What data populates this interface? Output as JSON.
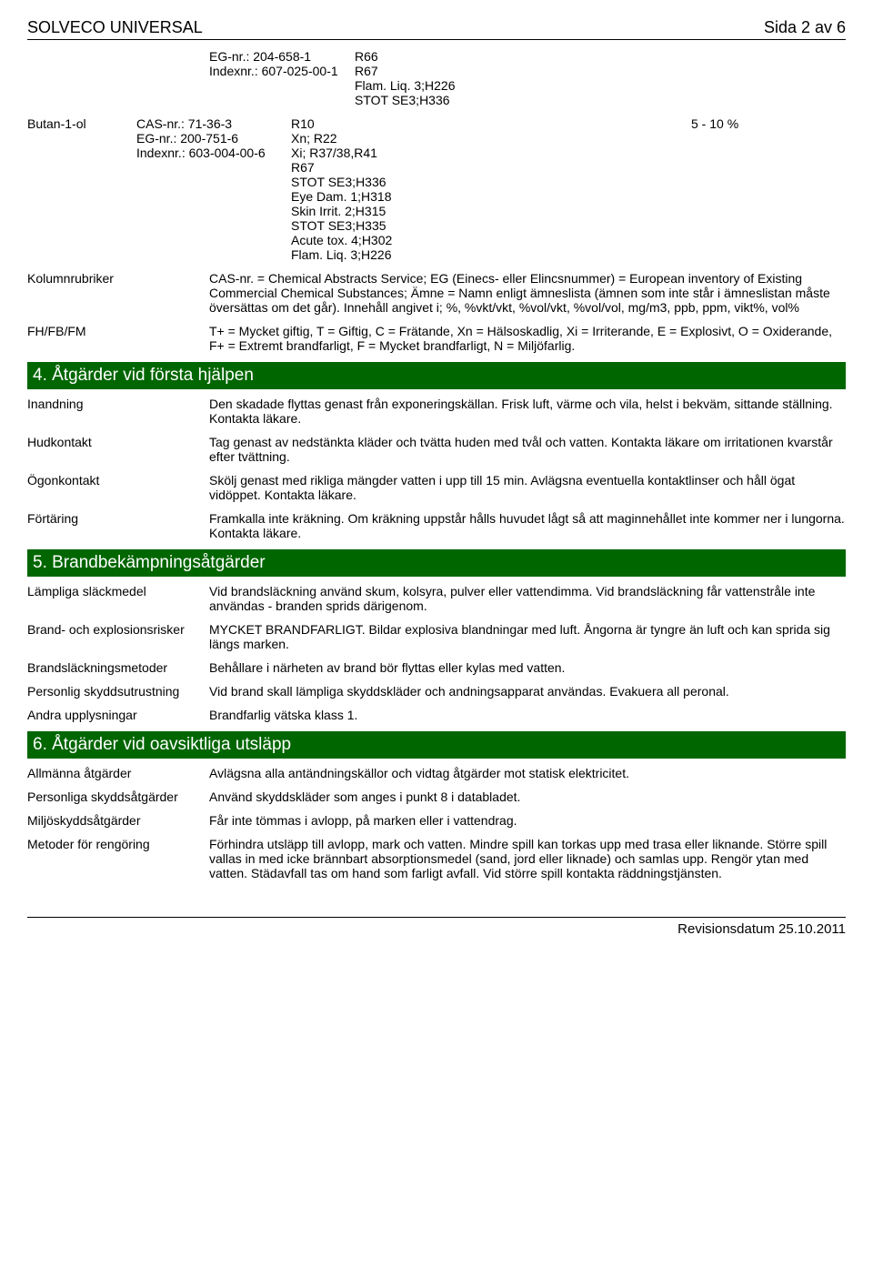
{
  "header": {
    "title": "SOLVECO UNIVERSAL",
    "page_info": "Sida 2 av 6"
  },
  "top_block": {
    "rows": [
      {
        "label": "EG-nr.: 204-658-1",
        "value": "R66"
      },
      {
        "label": "Indexnr.: 607-025-00-1",
        "value": "R67"
      },
      {
        "label": "",
        "value": "Flam. Liq. 3;H226"
      },
      {
        "label": "",
        "value": "STOT SE3;H336"
      }
    ]
  },
  "substance": {
    "name": "Butan-1-ol",
    "ids": [
      "CAS-nr.: 71-36-3",
      "EG-nr.: 200-751-6",
      "Indexnr.: 603-004-00-6"
    ],
    "hazards": [
      "R10",
      "Xn; R22",
      "Xi; R37/38,R41",
      "R67",
      "STOT SE3;H336",
      "Eye Dam. 1;H318",
      "Skin Irrit. 2;H315",
      "STOT SE3;H335",
      "Acute tox. 4;H302",
      "Flam. Liq. 3;H226"
    ],
    "percent": "5 - 10 %"
  },
  "legend": {
    "kolumnrubriker": {
      "label": "Kolumnrubriker",
      "text": "CAS-nr. = Chemical Abstracts Service; EG (Einecs- eller Elincsnummer) = European inventory of Existing Commercial Chemical Substances; Ämne = Namn enligt ämneslista (ämnen som inte står i ämneslistan måste översättas om det går). Innehåll angivet i; %, %vkt/vkt, %vol/vkt, %vol/vol, mg/m3, ppb, ppm, vikt%, vol%"
    },
    "fhfbfm": {
      "label": "FH/FB/FM",
      "text": "T+ = Mycket giftig, T = Giftig, C = Frätande, Xn = Hälsoskadlig, Xi = Irriterande, E = Explosivt, O = Oxiderande, F+ = Extremt brandfarligt, F = Mycket brandfarligt, N = Miljöfarlig."
    }
  },
  "section4": {
    "title": "4. Åtgärder vid första hjälpen",
    "rows": [
      {
        "label": "Inandning",
        "text": "Den skadade flyttas genast från exponeringskällan. Frisk luft, värme och vila, helst i bekväm, sittande ställning. Kontakta läkare."
      },
      {
        "label": "Hudkontakt",
        "text": "Tag genast av nedstänkta kläder och tvätta huden med tvål och vatten. Kontakta läkare om irritationen kvarstår efter tvättning."
      },
      {
        "label": "Ögonkontakt",
        "text": "Skölj genast med rikliga mängder vatten i upp till 15 min. Avlägsna eventuella kontaktlinser och håll ögat vidöppet. Kontakta läkare."
      },
      {
        "label": "Förtäring",
        "text": "Framkalla inte kräkning. Om kräkning uppstår hålls huvudet lågt så att maginnehållet inte kommer ner i lungorna. Kontakta läkare."
      }
    ]
  },
  "section5": {
    "title": "5. Brandbekämpningsåtgärder",
    "rows": [
      {
        "label": "Lämpliga släckmedel",
        "text": "Vid brandsläckning använd skum, kolsyra, pulver eller vattendimma. Vid brandsläckning får vattenstråle inte användas - branden sprids därigenom."
      },
      {
        "label": "Brand- och explosionsrisker",
        "text": "MYCKET BRANDFARLIGT. Bildar explosiva blandningar med luft. Ångorna är tyngre än luft och kan sprida sig längs marken."
      },
      {
        "label": "Brandsläckningsmetoder",
        "text": "Behållare i närheten av brand bör flyttas eller kylas med vatten."
      },
      {
        "label": "Personlig skyddsutrustning",
        "text": "Vid brand skall lämpliga skyddskläder och andningsapparat användas. Evakuera all peronal."
      },
      {
        "label": "Andra upplysningar",
        "text": "Brandfarlig vätska klass 1."
      }
    ]
  },
  "section6": {
    "title": "6. Åtgärder vid oavsiktliga utsläpp",
    "rows": [
      {
        "label": "Allmänna åtgärder",
        "text": "Avlägsna alla antändningskällor och vidtag åtgärder mot statisk elektricitet."
      },
      {
        "label": "Personliga skyddsåtgärder",
        "text": "Använd skyddskläder som anges i punkt 8 i databladet."
      },
      {
        "label": "Miljöskyddsåtgärder",
        "text": "Får inte tömmas i avlopp, på marken eller i vattendrag."
      },
      {
        "label": "Metoder för rengöring",
        "text": "Förhindra utsläpp till avlopp, mark och vatten. Mindre spill kan torkas upp med trasa eller liknande. Större spill vallas in med icke brännbart absorptionsmedel (sand, jord eller liknade) och samlas upp. Rengör ytan med vatten. Städavfall tas om hand som farligt avfall. Vid större spill kontakta räddningstjänsten."
      }
    ]
  },
  "footer": {
    "text": "Revisionsdatum 25.10.2011"
  },
  "colors": {
    "section_bg": "#006600",
    "section_fg": "#ffffff"
  }
}
